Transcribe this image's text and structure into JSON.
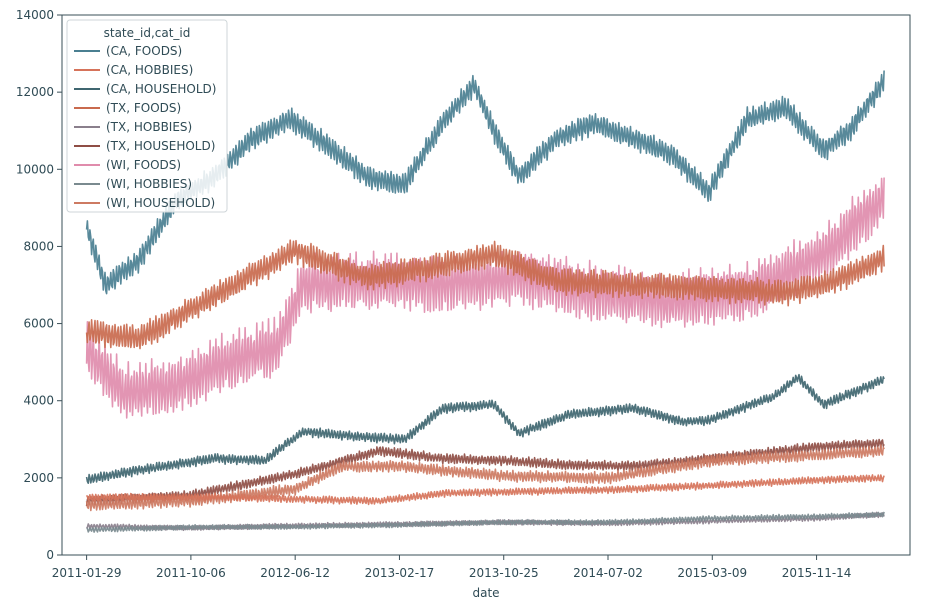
{
  "chart_data": {
    "type": "line",
    "xlabel": "date",
    "ylabel": "",
    "ylim": [
      0,
      14000
    ],
    "yticks": [
      0,
      2000,
      4000,
      6000,
      8000,
      10000,
      12000,
      14000
    ],
    "xlim": [
      "2010-12-01",
      "2016-06-25"
    ],
    "xticks": [
      {
        "date": "2011-01-29",
        "label": "2011-01-29"
      },
      {
        "date": "2011-10-06",
        "label": "2011-10-06"
      },
      {
        "date": "2012-06-12",
        "label": "2012-06-12"
      },
      {
        "date": "2013-02-17",
        "label": "2013-02-17"
      },
      {
        "date": "2013-10-25",
        "label": "2013-10-25"
      },
      {
        "date": "2014-07-02",
        "label": "2014-07-02"
      },
      {
        "date": "2015-03-09",
        "label": "2015-03-09"
      },
      {
        "date": "2015-11-14",
        "label": "2015-11-14"
      },
      {
        "date": "2016-07-21",
        "label": ""
      }
    ],
    "grid": false,
    "legend": {
      "placement": "top-left",
      "title": "state_id,cat_id"
    },
    "series": [
      {
        "name": "(CA, FOODS)",
        "color": "#4a7f91",
        "noise": 260,
        "points": [
          [
            "2011-01-29",
            8500
          ],
          [
            "2011-03-15",
            7000
          ],
          [
            "2011-06-01",
            7600
          ],
          [
            "2011-09-01",
            9200
          ],
          [
            "2011-12-01",
            9800
          ],
          [
            "2012-03-01",
            10800
          ],
          [
            "2012-06-01",
            11300
          ],
          [
            "2012-09-01",
            10600
          ],
          [
            "2012-12-01",
            9800
          ],
          [
            "2013-03-01",
            9600
          ],
          [
            "2013-06-01",
            11200
          ],
          [
            "2013-08-15",
            12200
          ],
          [
            "2013-10-01",
            11000
          ],
          [
            "2013-12-01",
            9800
          ],
          [
            "2014-03-01",
            10800
          ],
          [
            "2014-06-01",
            11200
          ],
          [
            "2014-09-01",
            10800
          ],
          [
            "2014-12-01",
            10400
          ],
          [
            "2015-03-01",
            9400
          ],
          [
            "2015-06-01",
            11300
          ],
          [
            "2015-09-01",
            11600
          ],
          [
            "2015-12-01",
            10500
          ],
          [
            "2016-02-01",
            11000
          ],
          [
            "2016-04-24",
            12300
          ]
        ]
      },
      {
        "name": "(CA, HOBBIES)",
        "color": "#d6735a",
        "noise": 80,
        "points": [
          [
            "2011-01-29",
            1500
          ],
          [
            "2011-12-01",
            1500
          ],
          [
            "2012-06-12",
            1450
          ],
          [
            "2013-01-01",
            1400
          ],
          [
            "2013-06-01",
            1600
          ],
          [
            "2014-01-01",
            1650
          ],
          [
            "2014-08-01",
            1700
          ],
          [
            "2015-03-01",
            1800
          ],
          [
            "2015-12-01",
            1950
          ],
          [
            "2016-04-24",
            2000
          ]
        ]
      },
      {
        "name": "(CA, HOUSEHOLD)",
        "color": "#3f6670",
        "noise": 110,
        "points": [
          [
            "2011-01-29",
            1950
          ],
          [
            "2011-06-01",
            2200
          ],
          [
            "2011-12-01",
            2500
          ],
          [
            "2012-04-01",
            2450
          ],
          [
            "2012-07-01",
            3200
          ],
          [
            "2012-12-01",
            3050
          ],
          [
            "2013-03-01",
            3000
          ],
          [
            "2013-06-01",
            3800
          ],
          [
            "2013-10-01",
            3900
          ],
          [
            "2013-12-01",
            3150
          ],
          [
            "2014-04-01",
            3650
          ],
          [
            "2014-09-01",
            3800
          ],
          [
            "2015-01-01",
            3450
          ],
          [
            "2015-03-01",
            3500
          ],
          [
            "2015-08-01",
            4100
          ],
          [
            "2015-10-01",
            4600
          ],
          [
            "2015-12-01",
            3900
          ],
          [
            "2016-04-24",
            4550
          ]
        ]
      },
      {
        "name": "(TX, FOODS)",
        "color": "#c96a4e",
        "noise": 300,
        "points": [
          [
            "2011-01-29",
            5800
          ],
          [
            "2011-06-01",
            5600
          ],
          [
            "2011-12-01",
            6700
          ],
          [
            "2012-06-12",
            7900
          ],
          [
            "2012-12-01",
            7200
          ],
          [
            "2013-06-01",
            7500
          ],
          [
            "2013-10-01",
            7800
          ],
          [
            "2014-03-01",
            7100
          ],
          [
            "2014-09-01",
            7000
          ],
          [
            "2015-03-01",
            6900
          ],
          [
            "2015-09-01",
            6800
          ],
          [
            "2016-01-01",
            7100
          ],
          [
            "2016-04-24",
            7700
          ]
        ]
      },
      {
        "name": "(TX, HOBBIES)",
        "color": "#8a7f8c",
        "noise": 55,
        "points": [
          [
            "2011-01-29",
            750
          ],
          [
            "2011-10-06",
            700
          ],
          [
            "2012-06-12",
            760
          ],
          [
            "2013-02-17",
            800
          ],
          [
            "2013-10-25",
            850
          ],
          [
            "2014-07-02",
            820
          ],
          [
            "2015-03-09",
            880
          ],
          [
            "2015-11-14",
            950
          ],
          [
            "2016-04-24",
            1050
          ]
        ]
      },
      {
        "name": "(TX, HOUSEHOLD)",
        "color": "#8f4e45",
        "noise": 110,
        "points": [
          [
            "2011-01-29",
            1400
          ],
          [
            "2011-10-06",
            1550
          ],
          [
            "2012-06-12",
            2100
          ],
          [
            "2013-01-01",
            2700
          ],
          [
            "2013-06-01",
            2500
          ],
          [
            "2013-10-25",
            2450
          ],
          [
            "2014-03-01",
            2350
          ],
          [
            "2014-09-01",
            2300
          ],
          [
            "2015-03-09",
            2500
          ],
          [
            "2015-11-14",
            2800
          ],
          [
            "2016-04-24",
            2900
          ]
        ]
      },
      {
        "name": "(WI, FOODS)",
        "color": "#e08cac",
        "noise": 650,
        "points": [
          [
            "2011-01-29",
            5300
          ],
          [
            "2011-05-01",
            4200
          ],
          [
            "2011-09-01",
            4400
          ],
          [
            "2012-01-01",
            5000
          ],
          [
            "2012-05-01",
            5400
          ],
          [
            "2012-07-01",
            7000
          ],
          [
            "2012-12-01",
            7100
          ],
          [
            "2013-06-01",
            7000
          ],
          [
            "2013-12-01",
            7200
          ],
          [
            "2014-06-01",
            6800
          ],
          [
            "2014-12-01",
            6600
          ],
          [
            "2015-06-01",
            6800
          ],
          [
            "2015-12-01",
            7800
          ],
          [
            "2016-04-24",
            9300
          ]
        ]
      },
      {
        "name": "(WI, HOBBIES)",
        "color": "#7a8a8f",
        "noise": 55,
        "points": [
          [
            "2011-01-29",
            650
          ],
          [
            "2011-10-06",
            720
          ],
          [
            "2012-06-12",
            730
          ],
          [
            "2013-02-17",
            780
          ],
          [
            "2013-10-25",
            850
          ],
          [
            "2014-07-02",
            850
          ],
          [
            "2015-03-09",
            950
          ],
          [
            "2015-11-14",
            1000
          ],
          [
            "2016-04-24",
            1050
          ]
        ]
      },
      {
        "name": "(WI, HOUSEHOLD)",
        "color": "#cd7a62",
        "noise": 130,
        "points": [
          [
            "2011-01-29",
            1300
          ],
          [
            "2011-10-06",
            1400
          ],
          [
            "2012-06-12",
            1700
          ],
          [
            "2012-10-01",
            2300
          ],
          [
            "2013-02-17",
            2300
          ],
          [
            "2013-10-25",
            2050
          ],
          [
            "2014-07-02",
            2000
          ],
          [
            "2015-03-09",
            2450
          ],
          [
            "2015-11-14",
            2600
          ],
          [
            "2016-04-24",
            2700
          ]
        ]
      }
    ]
  }
}
